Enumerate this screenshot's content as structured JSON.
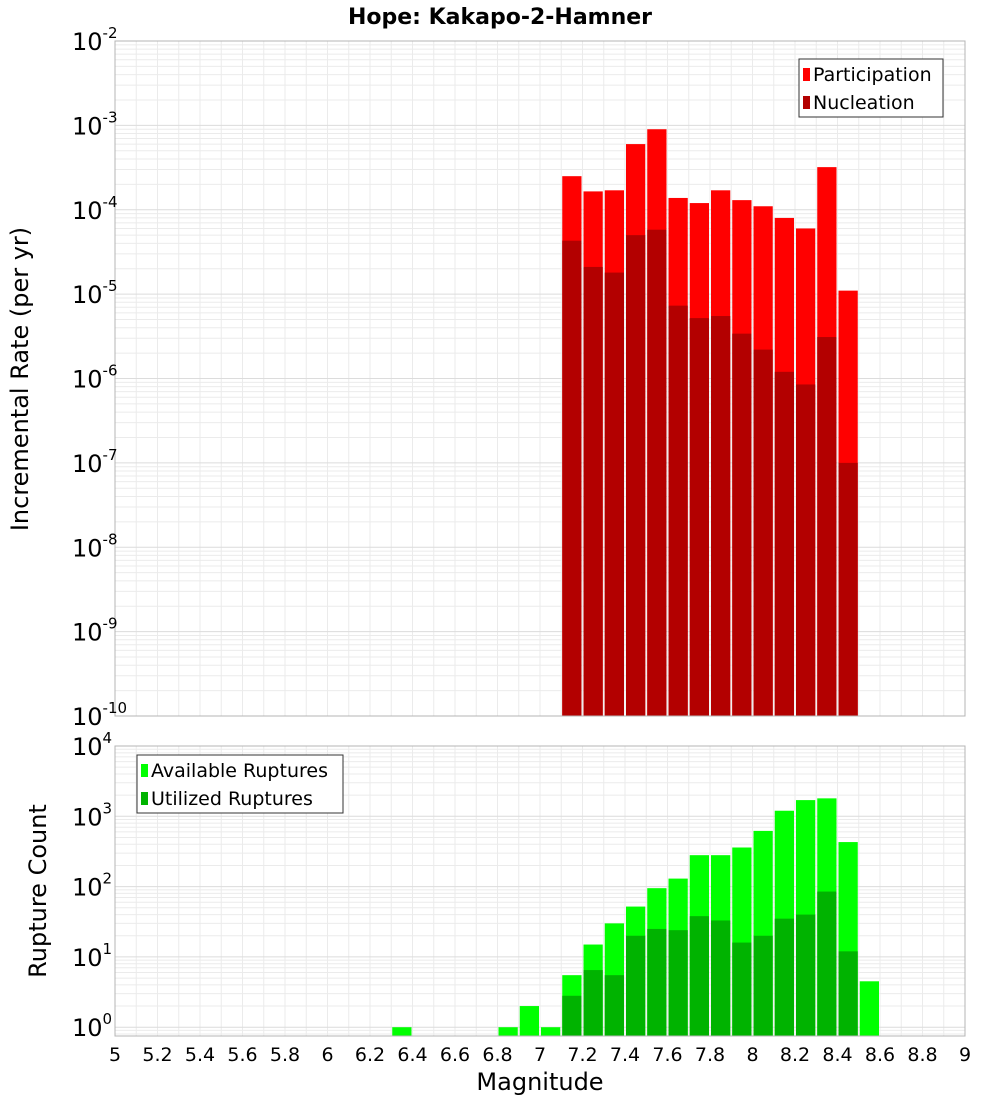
{
  "chart_data": [
    {
      "type": "bar",
      "title": "Hope: Kakapo-2-Hamner",
      "ylabel": "Incremental Rate (per yr)",
      "xlabel": "",
      "yscale": "log",
      "ylim": [
        1e-10,
        0.01
      ],
      "xlim": [
        5,
        9
      ],
      "bin_width": 0.1,
      "grid": true,
      "legend_position": "top-right",
      "series": [
        {
          "name": "Participation",
          "color": "#ff0000",
          "x": [
            7.15,
            7.25,
            7.35,
            7.45,
            7.55,
            7.65,
            7.75,
            7.85,
            7.95,
            8.05,
            8.15,
            8.25,
            8.35,
            8.45
          ],
          "values": [
            0.00025,
            0.000165,
            0.00017,
            0.0006,
            0.0009,
            0.000138,
            0.00012,
            0.00017,
            0.00013,
            0.00011,
            8e-05,
            6e-05,
            0.00032,
            1.1e-05
          ]
        },
        {
          "name": "Nucleation",
          "color": "#b30000",
          "x": [
            7.15,
            7.25,
            7.35,
            7.45,
            7.55,
            7.65,
            7.75,
            7.85,
            7.95,
            8.05,
            8.15,
            8.25,
            8.35,
            8.45
          ],
          "values": [
            4.3e-05,
            2.1e-05,
            1.8e-05,
            5e-05,
            5.8e-05,
            7.3e-06,
            5.2e-06,
            5.5e-06,
            3.4e-06,
            2.2e-06,
            1.2e-06,
            8.5e-07,
            3.1e-06,
            1e-07
          ]
        }
      ]
    },
    {
      "type": "bar",
      "title": "",
      "ylabel": "Rupture Count",
      "xlabel": "Magnitude",
      "yscale": "log",
      "ylim": [
        0.75,
        10000
      ],
      "xlim": [
        5,
        9
      ],
      "bin_width": 0.1,
      "grid": true,
      "legend_position": "top-left",
      "xticks": [
        "5",
        "5.2",
        "5.4",
        "5.6",
        "5.8",
        "6",
        "6.2",
        "6.4",
        "6.6",
        "6.8",
        "7",
        "7.2",
        "7.4",
        "7.6",
        "7.8",
        "8",
        "8.2",
        "8.4",
        "8.6",
        "8.8",
        "9"
      ],
      "series": [
        {
          "name": "Available Ruptures",
          "color": "#00ff00",
          "x": [
            6.35,
            6.85,
            6.95,
            7.05,
            7.15,
            7.25,
            7.35,
            7.45,
            7.55,
            7.65,
            7.75,
            7.85,
            7.95,
            8.05,
            8.15,
            8.25,
            8.35,
            8.45,
            8.55
          ],
          "values": [
            1,
            1,
            2,
            1,
            5.5,
            15,
            30,
            52,
            95,
            130,
            280,
            280,
            360,
            620,
            1200,
            1700,
            1800,
            430,
            4.5
          ]
        },
        {
          "name": "Utilized Ruptures",
          "color": "#00b300",
          "x": [
            7.15,
            7.25,
            7.35,
            7.45,
            7.55,
            7.65,
            7.75,
            7.85,
            7.95,
            8.05,
            8.15,
            8.25,
            8.35,
            8.45
          ],
          "values": [
            2.8,
            6.5,
            5.5,
            20,
            25,
            24,
            38,
            33,
            16,
            20,
            35,
            40,
            85,
            12
          ]
        }
      ]
    }
  ]
}
